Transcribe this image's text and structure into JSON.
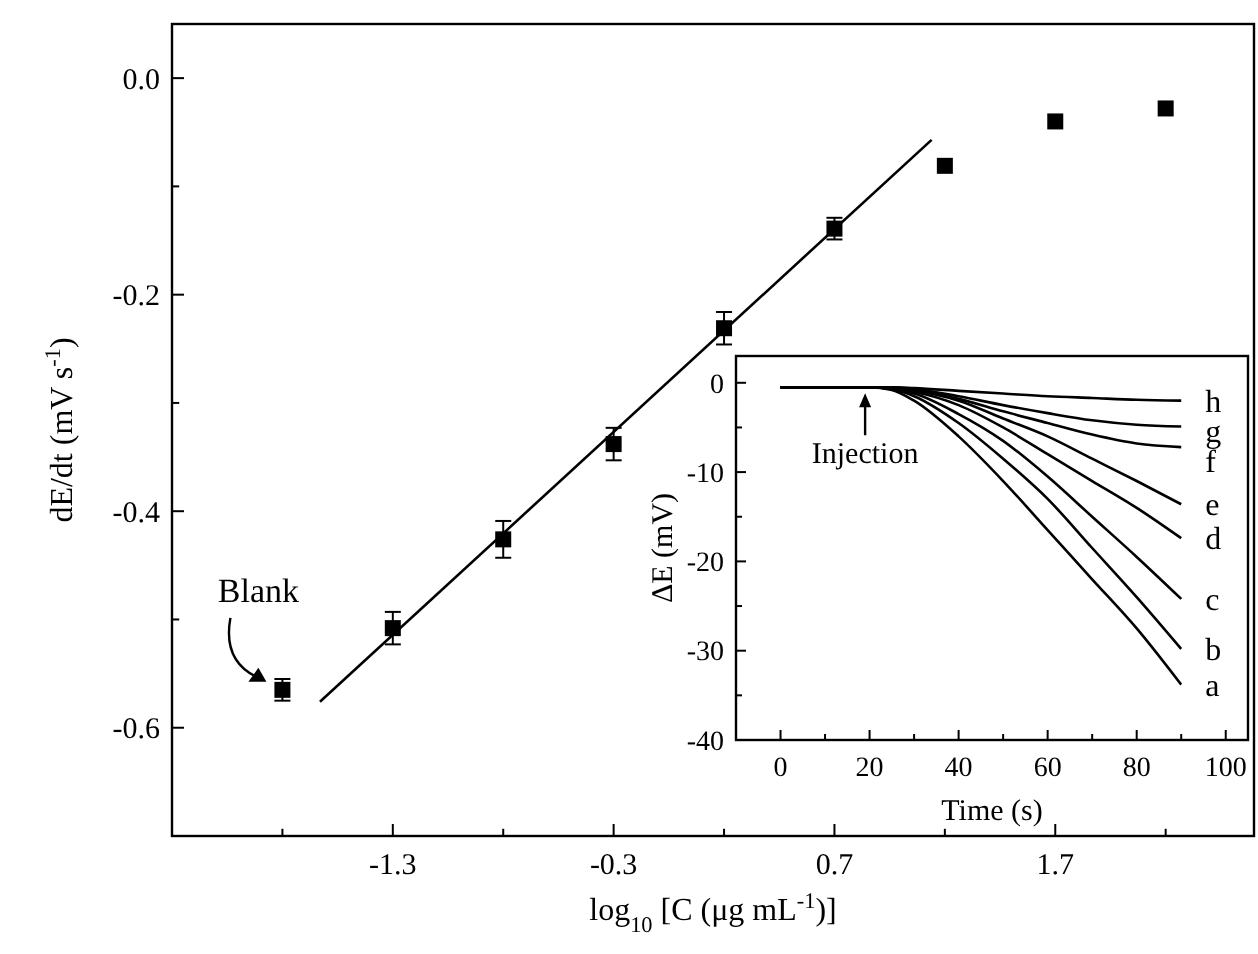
{
  "chart_data": [
    {
      "type": "scatter",
      "xlabel": "log$_{10}$ [C (μg mL$^{-1}$)]",
      "ylabel": "dE/dt (mV s$^{-1}$)",
      "xlim": [
        -2.3,
        2.6
      ],
      "ylim": [
        -0.7,
        0.05
      ],
      "xticks": [
        {
          "value": -1.8,
          "label": null
        },
        -1.3,
        {
          "value": -0.8,
          "label": null
        },
        -0.3,
        {
          "value": 0.2,
          "label": null
        },
        0.7,
        {
          "value": 1.2,
          "label": null
        },
        1.7,
        {
          "value": 2.2,
          "label": null
        }
      ],
      "yticks": [
        {
          "value": -0.7,
          "label": null
        },
        -0.6,
        {
          "value": -0.5,
          "label": null
        },
        -0.4,
        {
          "value": -0.3,
          "label": null
        },
        -0.2,
        {
          "value": -0.1,
          "label": null
        },
        {
          "value": 0,
          "label": "0.0"
        }
      ],
      "series": [
        {
          "marker": "square",
          "color": "#000000",
          "x": [
            -1.8,
            -1.3,
            -0.8,
            -0.3,
            0.2,
            0.7,
            1.2,
            1.7,
            2.2
          ],
          "values": [
            -0.565,
            -0.508,
            -0.426,
            -0.338,
            -0.231,
            -0.139,
            -0.081,
            -0.04,
            -0.028
          ],
          "errors": [
            0.01,
            0.015,
            0.017,
            0.015,
            0.015,
            0.01,
            null,
            null,
            null
          ]
        },
        {
          "type": "line",
          "color": "#000000",
          "x": [
            -1.63,
            1.14
          ],
          "values": [
            -0.576,
            -0.057
          ]
        }
      ],
      "annotations": [
        {
          "text": "Blank",
          "x": -1.8,
          "y": -0.565
        }
      ]
    },
    {
      "type": "line",
      "xlabel": "Time (s)",
      "ylabel": "ΔE (mV)",
      "xlim": [
        -10,
        105
      ],
      "ylim": [
        -40,
        3
      ],
      "xticks": [
        0,
        {
          "value": 10,
          "label": null
        },
        20,
        {
          "value": 30,
          "label": null
        },
        40,
        {
          "value": 50,
          "label": null
        },
        60,
        {
          "value": 70,
          "label": null
        },
        80,
        {
          "value": 90,
          "label": null
        },
        100
      ],
      "yticks": [
        -40,
        {
          "value": -35,
          "label": null
        },
        -30,
        {
          "value": -25,
          "label": null
        },
        -20,
        {
          "value": -15,
          "label": null
        },
        -10,
        {
          "value": -5,
          "label": null
        },
        0
      ],
      "x": [
        0,
        10,
        20,
        25,
        30,
        40,
        50,
        60,
        70,
        80,
        90
      ],
      "series": [
        {
          "name": "a",
          "color": "#000000",
          "values": [
            -0.5,
            -0.5,
            -0.5,
            -0.8,
            -2,
            -6,
            -11,
            -16.5,
            -22,
            -27.5,
            -33.8
          ]
        },
        {
          "name": "b",
          "color": "#000000",
          "values": [
            -0.5,
            -0.5,
            -0.5,
            -0.7,
            -1.5,
            -4.5,
            -8.5,
            -13,
            -18.5,
            -24,
            -29.8
          ]
        },
        {
          "name": "c",
          "color": "#000000",
          "values": [
            -0.5,
            -0.5,
            -0.5,
            -0.7,
            -1.2,
            -3.5,
            -6.5,
            -10.5,
            -15,
            -19.5,
            -24.2
          ]
        },
        {
          "name": "d",
          "color": "#000000",
          "values": [
            -0.5,
            -0.5,
            -0.5,
            -0.6,
            -1,
            -2.5,
            -5,
            -8,
            -11,
            -14,
            -17.4
          ]
        },
        {
          "name": "e",
          "color": "#000000",
          "values": [
            -0.5,
            -0.5,
            -0.5,
            -0.6,
            -0.9,
            -2,
            -4,
            -6,
            -8.5,
            -11,
            -13.6
          ]
        },
        {
          "name": "f",
          "color": "#000000",
          "values": [
            -0.5,
            -0.5,
            -0.5,
            -0.6,
            -0.8,
            -1.8,
            -3.2,
            -4.5,
            -5.8,
            -6.8,
            -7.2
          ]
        },
        {
          "name": "g",
          "color": "#000000",
          "values": [
            -0.5,
            -0.5,
            -0.5,
            -0.5,
            -0.7,
            -1.5,
            -2.5,
            -3.4,
            -4.2,
            -4.7,
            -4.9
          ]
        },
        {
          "name": "h",
          "color": "#000000",
          "values": [
            -0.5,
            -0.5,
            -0.5,
            -0.5,
            -0.6,
            -0.9,
            -1.2,
            -1.5,
            -1.7,
            -1.9,
            -2
          ]
        }
      ],
      "annotations": [
        {
          "text": "Injection",
          "x": 19,
          "y": -0.5
        }
      ]
    }
  ]
}
